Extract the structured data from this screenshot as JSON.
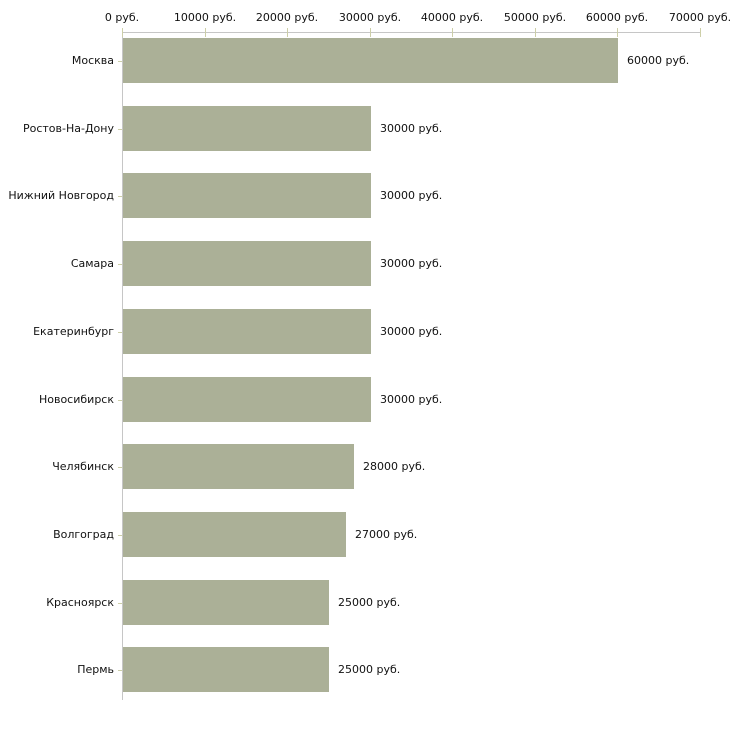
{
  "chart_data": {
    "type": "bar",
    "orientation": "horizontal",
    "title": "",
    "categories": [
      "Москва",
      "Ростов-На-Дону",
      "Нижний Новгород",
      "Самара",
      "Екатеринбург",
      "Новосибирск",
      "Челябинск",
      "Волгоград",
      "Красноярск",
      "Пермь"
    ],
    "values": [
      60000,
      30000,
      30000,
      30000,
      30000,
      30000,
      28000,
      27000,
      25000,
      25000
    ],
    "value_labels": [
      "60000 руб.",
      "30000 руб.",
      "30000 руб.",
      "30000 руб.",
      "30000 руб.",
      "30000 руб.",
      "28000 руб.",
      "27000 руб.",
      "25000 руб.",
      "25000 руб."
    ],
    "x_tick_values": [
      0,
      10000,
      20000,
      30000,
      40000,
      50000,
      60000,
      70000
    ],
    "x_tick_labels": [
      "0 руб.",
      "10000 руб.",
      "20000 руб.",
      "30000 руб.",
      "40000 руб.",
      "50000 руб.",
      "60000 руб.",
      "70000 руб."
    ],
    "xlim": [
      0,
      70000
    ],
    "unit": "руб.",
    "grid": false,
    "legend_position": "none",
    "colors": {
      "bar": "#abb097",
      "axis": "#c6c6c6",
      "tick": "#cdcfa8",
      "text": "#111111",
      "background": "#ffffff"
    }
  }
}
